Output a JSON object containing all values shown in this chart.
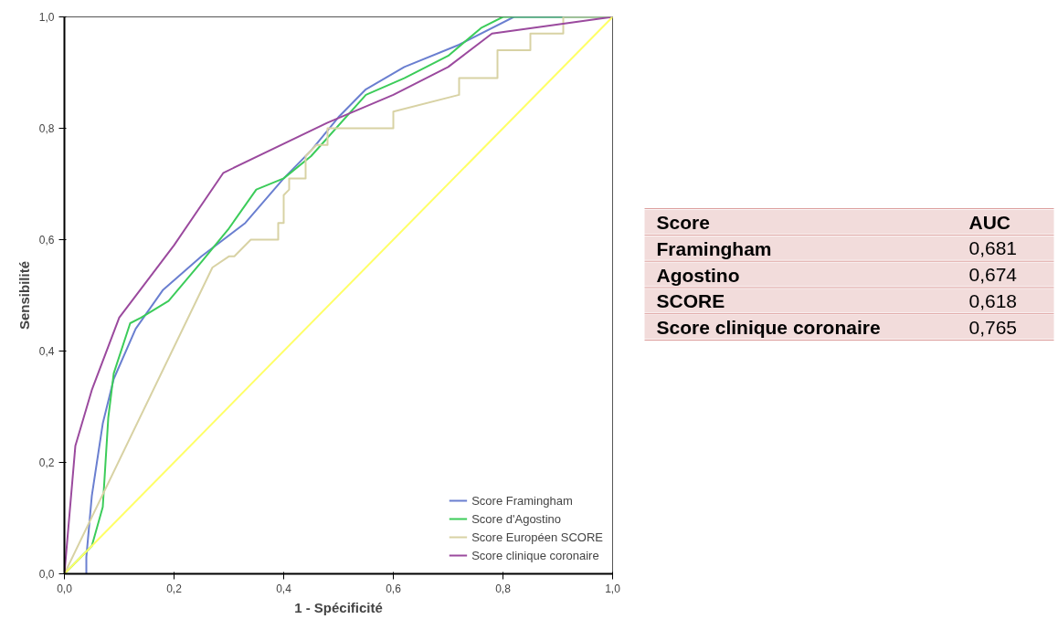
{
  "chart_data": [
    {
      "type": "line",
      "xlabel": "1 - Spécificité",
      "ylabel": "Sensibilité",
      "xlim": [
        0,
        1
      ],
      "ylim": [
        0,
        1
      ],
      "xticks": [
        {
          "value": 0,
          "label": "0,0"
        },
        {
          "value": 0.2,
          "label": "0,2"
        },
        {
          "value": 0.4,
          "label": "0,4"
        },
        {
          "value": 0.6,
          "label": "0,6"
        },
        {
          "value": 0.8,
          "label": "0,8"
        },
        {
          "value": 1,
          "label": "1,0"
        }
      ],
      "yticks": [
        {
          "value": 0,
          "label": "0,0"
        },
        {
          "value": 0.2,
          "label": "0,2"
        },
        {
          "value": 0.4,
          "label": "0,4"
        },
        {
          "value": 0.6,
          "label": "0,6"
        },
        {
          "value": 0.8,
          "label": "0,8"
        },
        {
          "value": 1,
          "label": "1,0"
        }
      ],
      "grid": false,
      "legend": "bottom right",
      "marker": "none",
      "line_style": "solid",
      "series": [
        {
          "name": "Score Framingham",
          "color": "#6a7fd0",
          "x": [
            0.04,
            0.04,
            0.05,
            0.07,
            0.09,
            0.13,
            0.18,
            0.25,
            0.33,
            0.4,
            0.45,
            0.5,
            0.55,
            0.62,
            0.72,
            0.82,
            1
          ],
          "values": [
            0,
            0.03,
            0.14,
            0.27,
            0.35,
            0.44,
            0.51,
            0.57,
            0.63,
            0.71,
            0.76,
            0.82,
            0.87,
            0.91,
            0.95,
            1,
            1
          ]
        },
        {
          "name": "Score d'Agostino",
          "color": "#3ccc5a",
          "x": [
            0,
            0.05,
            0.07,
            0.08,
            0.09,
            0.12,
            0.14,
            0.19,
            0.25,
            0.3,
            0.35,
            0.4,
            0.45,
            0.55,
            0.62,
            0.7,
            0.76,
            0.8,
            1
          ],
          "values": [
            0,
            0.05,
            0.12,
            0.28,
            0.36,
            0.45,
            0.46,
            0.49,
            0.56,
            0.62,
            0.69,
            0.71,
            0.75,
            0.86,
            0.89,
            0.93,
            0.98,
            1,
            1
          ]
        },
        {
          "name": "Score Européen SCORE",
          "color": "#d8d2a4",
          "x": [
            0,
            0.27,
            0.3,
            0.31,
            0.34,
            0.39,
            0.39,
            0.4,
            0.4,
            0.41,
            0.41,
            0.44,
            0.44,
            0.46,
            0.48,
            0.48,
            0.6,
            0.6,
            0.72,
            0.72,
            0.79,
            0.79,
            0.85,
            0.85,
            0.91,
            0.91,
            1
          ],
          "values": [
            0,
            0.55,
            0.57,
            0.57,
            0.6,
            0.6,
            0.63,
            0.63,
            0.68,
            0.69,
            0.71,
            0.71,
            0.75,
            0.77,
            0.77,
            0.8,
            0.8,
            0.83,
            0.86,
            0.89,
            0.89,
            0.94,
            0.94,
            0.97,
            0.97,
            1,
            1
          ]
        },
        {
          "name": "Score clinique coronaire",
          "color": "#9b4a9e",
          "x": [
            0,
            0.02,
            0.05,
            0.1,
            0.2,
            0.29,
            0.48,
            0.6,
            0.7,
            0.78,
            1
          ],
          "values": [
            0,
            0.23,
            0.33,
            0.46,
            0.59,
            0.72,
            0.81,
            0.86,
            0.91,
            0.97,
            1
          ]
        },
        {
          "color": "#ffff66",
          "x": [
            0,
            1
          ],
          "values": [
            0,
            1
          ]
        }
      ]
    },
    {
      "type": "other",
      "xlabel": "Score",
      "ylabel": "AUC",
      "color": "#f2dcdb",
      "categories": [
        "Framingham",
        "Agostino",
        "SCORE",
        "Score clinique coronaire"
      ],
      "value_labels": [
        "0,681",
        "0,674",
        "0,618",
        "0,765"
      ]
    }
  ]
}
